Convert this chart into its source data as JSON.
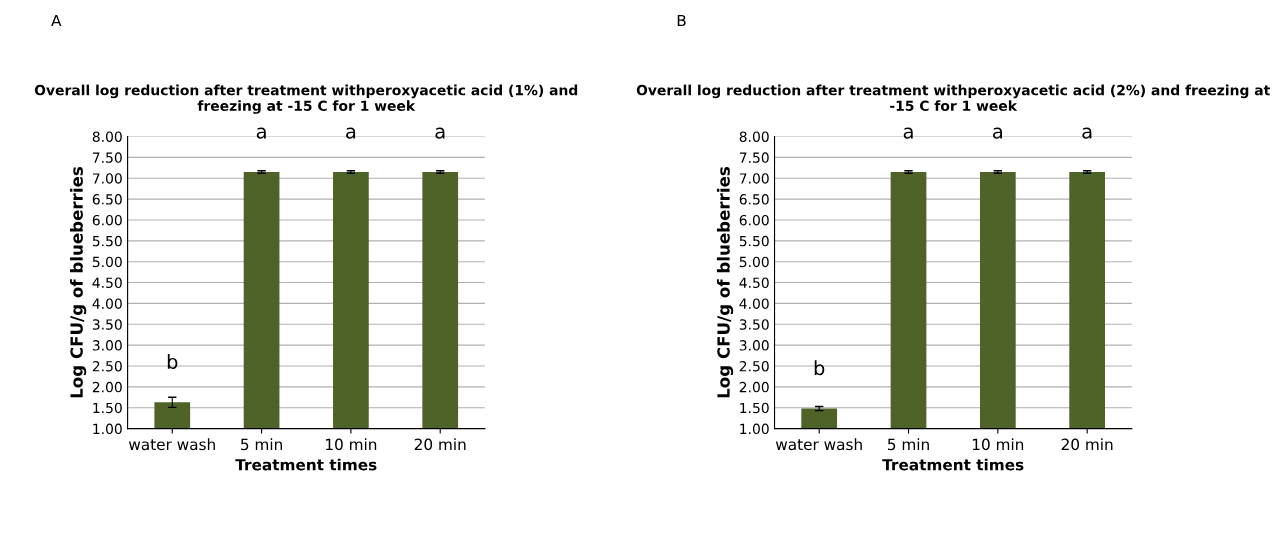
{
  "chart_data": [
    {
      "type": "bar",
      "title": "Overall log reduction after treatment withperoxyacetic acid (1%) and freezing at -15 C for 1 week",
      "xlabel": "Treatment times",
      "ylabel": "Log CFU/g of blueberries",
      "categories": [
        "water wash",
        "5 min",
        "10 min",
        "20 min"
      ],
      "series": [
        {
          "color": "#4f6228",
          "values": [
            1.63,
            7.15,
            7.15,
            7.15
          ],
          "errors": [
            0.12,
            0.03,
            0.03,
            0.03
          ]
        }
      ],
      "ylim": [
        1.0,
        8.0
      ],
      "yticks": [
        {
          "value": 1.0,
          "label": "1.00"
        },
        {
          "value": 1.5,
          "label": "1.50"
        },
        {
          "value": 2.0,
          "label": "2.00"
        },
        {
          "value": 2.5,
          "label": "2.50"
        },
        {
          "value": 3.0,
          "label": "3.00"
        },
        {
          "value": 3.5,
          "label": "3.50"
        },
        {
          "value": 4.0,
          "label": "4.00"
        },
        {
          "value": 4.5,
          "label": "4.50"
        },
        {
          "value": 5.0,
          "label": "5.00"
        },
        {
          "value": 5.5,
          "label": "5.50"
        },
        {
          "value": 6.0,
          "label": "6.00"
        },
        {
          "value": 6.5,
          "label": "6.50"
        },
        {
          "value": 7.0,
          "label": "7.00"
        },
        {
          "value": 7.5,
          "label": "7.50"
        },
        {
          "value": 8.0,
          "label": "8.00"
        }
      ],
      "grid": "y",
      "annotations": [
        "A",
        "b",
        "a",
        "a",
        "a"
      ]
    },
    {
      "type": "bar",
      "title": "Overall log reduction after treatment withperoxyacetic acid (2%) and freezing at -15 C for 1 week",
      "xlabel": "Treatment times",
      "ylabel": "Log CFU/g of blueberries",
      "categories": [
        "water wash",
        "5 min",
        "10 min",
        "20 min"
      ],
      "series": [
        {
          "color": "#4f6228",
          "values": [
            1.48,
            7.15,
            7.15,
            7.15
          ],
          "errors": [
            0.05,
            0.03,
            0.03,
            0.03
          ]
        }
      ],
      "ylim": [
        1.0,
        8.0
      ],
      "yticks": [
        {
          "value": 1.0,
          "label": "1.00"
        },
        {
          "value": 1.5,
          "label": "1.50"
        },
        {
          "value": 2.0,
          "label": "2.00"
        },
        {
          "value": 2.5,
          "label": "2.50"
        },
        {
          "value": 3.0,
          "label": "3.00"
        },
        {
          "value": 3.5,
          "label": "3.50"
        },
        {
          "value": 4.0,
          "label": "4.00"
        },
        {
          "value": 4.5,
          "label": "4.50"
        },
        {
          "value": 5.0,
          "label": "5.00"
        },
        {
          "value": 5.5,
          "label": "5.50"
        },
        {
          "value": 6.0,
          "label": "6.00"
        },
        {
          "value": 6.5,
          "label": "6.50"
        },
        {
          "value": 7.0,
          "label": "7.00"
        },
        {
          "value": 7.5,
          "label": "7.50"
        },
        {
          "value": 8.0,
          "label": "8.00"
        }
      ],
      "grid": "y",
      "annotations": [
        "B",
        "b",
        "a",
        "a",
        "a"
      ]
    }
  ]
}
